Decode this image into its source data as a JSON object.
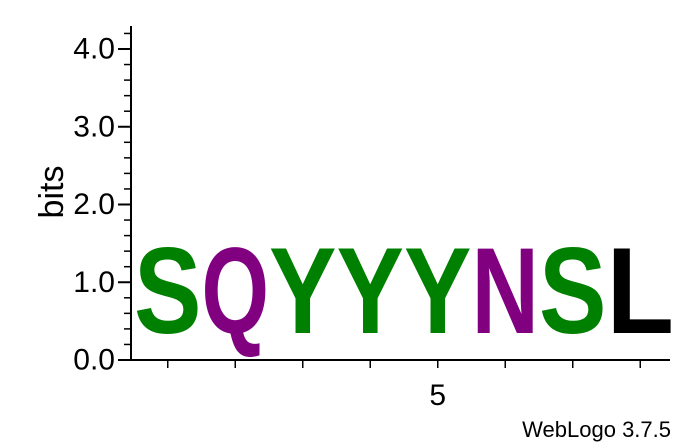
{
  "chart_data": {
    "type": "sequence-logo",
    "ylabel": "bits",
    "ylim": [
      0,
      4.3
    ],
    "y_ticks": [
      0.0,
      1.0,
      2.0,
      3.0,
      4.0
    ],
    "y_tick_labels": [
      "0.0",
      "1.0",
      "2.0",
      "3.0",
      "4.0"
    ],
    "x_tick_labels": [
      {
        "position": 5,
        "label": "5"
      }
    ],
    "positions": [
      1,
      2,
      3,
      4,
      5,
      6,
      7,
      8
    ],
    "residues": [
      "S",
      "Q",
      "Y",
      "Y",
      "Y",
      "N",
      "S",
      "L"
    ],
    "bits": [
      1.77,
      1.77,
      1.77,
      1.77,
      1.77,
      1.77,
      1.77,
      1.77
    ],
    "colors": {
      "S": "#008000",
      "Q": "#800080",
      "Y": "#008000",
      "N": "#800080",
      "L": "#000000"
    }
  },
  "credit": "WebLogo 3.7.5"
}
